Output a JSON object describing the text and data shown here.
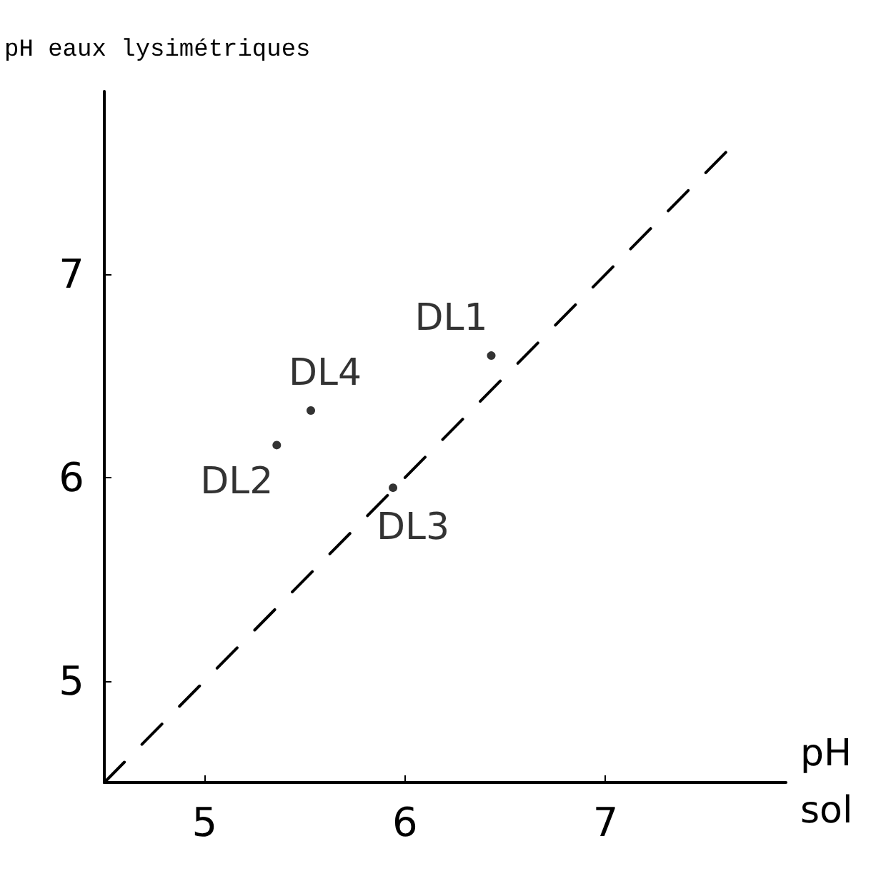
{
  "chart_data": {
    "type": "scatter",
    "ylabel": "pH eaux lysimétriques",
    "xlabel": "pH sol",
    "xlim": [
      4.5,
      7.9
    ],
    "ylim": [
      4.5,
      7.9
    ],
    "xticks": [
      5,
      6,
      7
    ],
    "yticks": [
      5,
      6,
      7
    ],
    "grid": false,
    "marker": "circle",
    "series": [
      {
        "color": "#000000",
        "x": [
          6.43,
          5.36,
          5.94,
          5.53
        ],
        "values": [
          6.6,
          6.16,
          5.95,
          6.33
        ]
      },
      {
        "type": "line",
        "line_style": "dashed",
        "marker": "none",
        "color": "#000000",
        "x": [
          4.5,
          7.6
        ],
        "values": [
          4.5,
          7.6
        ]
      }
    ],
    "annotations": [
      {
        "text": "DL1",
        "x": 6.43,
        "y": 6.6
      },
      {
        "text": "DL2",
        "x": 5.36,
        "y": 6.16
      },
      {
        "text": "DL3",
        "x": 5.94,
        "y": 5.95
      },
      {
        "text": "DL4",
        "x": 5.53,
        "y": 6.33
      }
    ]
  }
}
